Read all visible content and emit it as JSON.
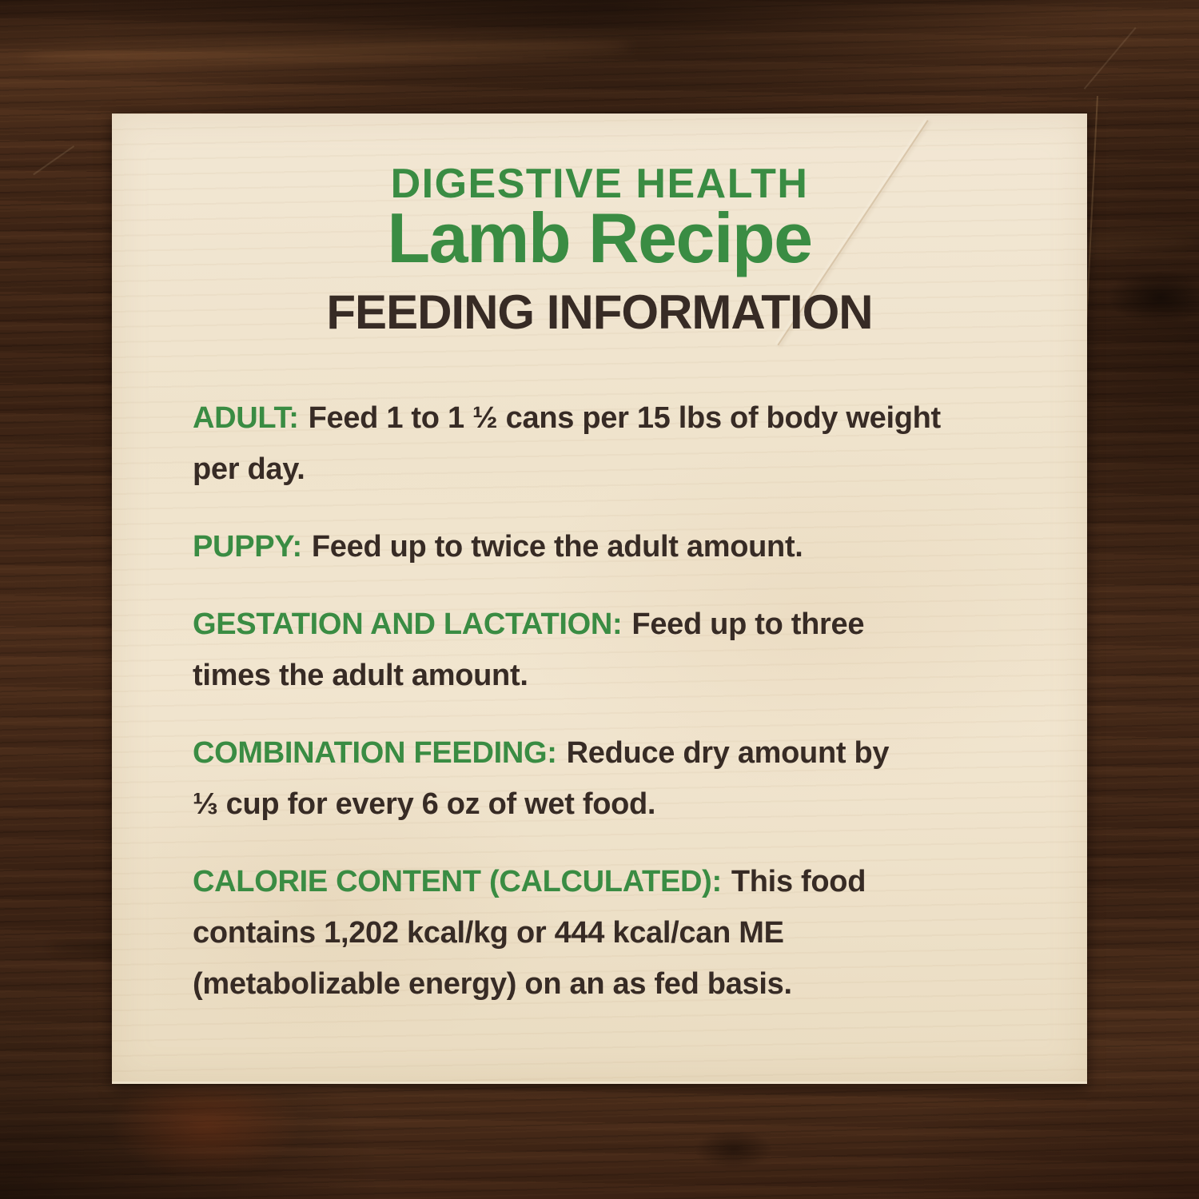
{
  "header": {
    "eyebrow": "DIGESTIVE HEALTH",
    "title": "Lamb Recipe",
    "subtitle": "FEEDING INFORMATION"
  },
  "body": {
    "paragraphs": [
      {
        "label": "ADULT:",
        "lines": [
          "Feed 1 to 1 ½ cans per 15 lbs of body weight",
          "per day."
        ]
      },
      {
        "label": "PUPPY:",
        "lines": [
          "Feed up to twice the adult amount."
        ]
      },
      {
        "label": "GESTATION AND LACTATION:",
        "lines": [
          "Feed up to three",
          "times the adult amount."
        ]
      },
      {
        "label": "COMBINATION FEEDING:",
        "lines": [
          "Reduce dry amount by",
          "⅓ cup for every 6 oz of wet food."
        ]
      },
      {
        "label": "CALORIE CONTENT (CALCULATED):",
        "lines": [
          "This food",
          "contains 1,202 kcal/kg or 444 kcal/can ME",
          "(metabolizable energy) on an as fed basis."
        ]
      }
    ]
  },
  "colors": {
    "accent_green": "#3a8c43",
    "dark_text": "#372b25",
    "panel_cream": "#efe3cd",
    "wood_brown": "#4a2c1a"
  }
}
